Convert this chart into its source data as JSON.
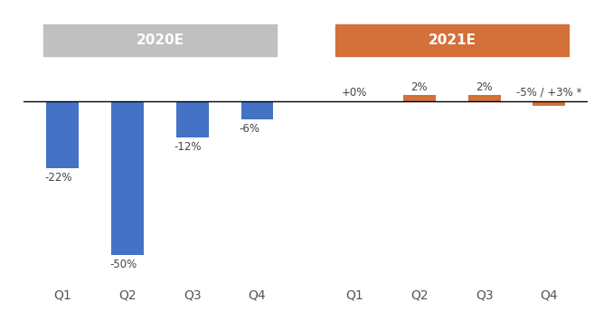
{
  "categories_2020": [
    "Q1",
    "Q2",
    "Q3",
    "Q4"
  ],
  "categories_2021": [
    "Q1",
    "Q2",
    "Q3",
    "Q4"
  ],
  "values_2020": [
    -22,
    -50,
    -12,
    -6
  ],
  "values_2021": [
    0,
    2,
    2,
    -1.5
  ],
  "labels_2020": [
    "-22%",
    "-50%",
    "-12%",
    "-6%"
  ],
  "labels_2021": [
    "+0%",
    "2%",
    "2%",
    "-5% / +3% *"
  ],
  "bar_color_2020": "#4472C4",
  "bar_color_2021": "#D4703A",
  "header_color_2020": "#C0C0C0",
  "header_color_2021": "#D4703A",
  "header_text_2020": "2020E",
  "header_text_2021": "2021E",
  "header_text_color": "#FFFFFF",
  "ylim": [
    -58,
    14
  ],
  "background_color": "#FFFFFF",
  "bar_width": 0.5
}
